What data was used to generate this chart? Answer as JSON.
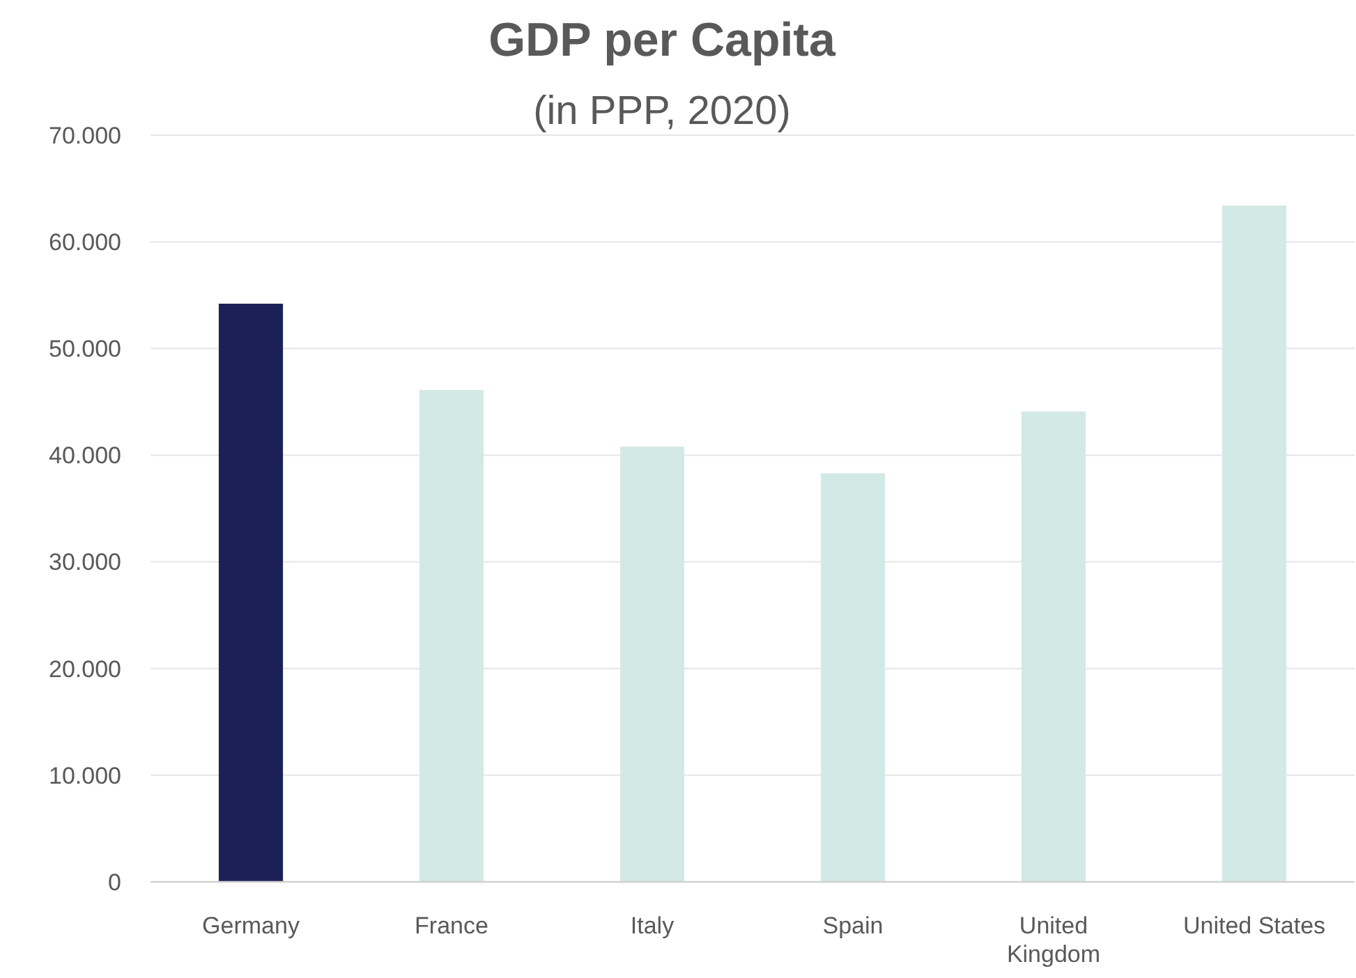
{
  "chart_data": {
    "type": "bar",
    "title": "GDP per Capita",
    "subtitle": "(in PPP, 2020)",
    "categories": [
      "Germany",
      "France",
      "Italy",
      "Spain",
      "United Kingdom",
      "United States"
    ],
    "values": [
      54200,
      46100,
      40800,
      38300,
      44100,
      63400
    ],
    "colors": [
      "#1b2157",
      "#d3e9e5",
      "#d3e9e5",
      "#d3e9e5",
      "#d3e9e5",
      "#d3e9e5"
    ],
    "ylim": [
      0,
      70000
    ],
    "yticks": [
      0,
      {
        "value": 10000,
        "label": "10.000"
      },
      {
        "value": 20000,
        "label": "20.000"
      },
      {
        "value": 30000,
        "label": "30.000"
      },
      {
        "value": 40000,
        "label": "40.000"
      },
      {
        "value": 50000,
        "label": "50.000"
      },
      {
        "value": 60000,
        "label": "60.000"
      },
      {
        "value": 70000,
        "label": "70.000"
      }
    ],
    "grid": "y"
  }
}
